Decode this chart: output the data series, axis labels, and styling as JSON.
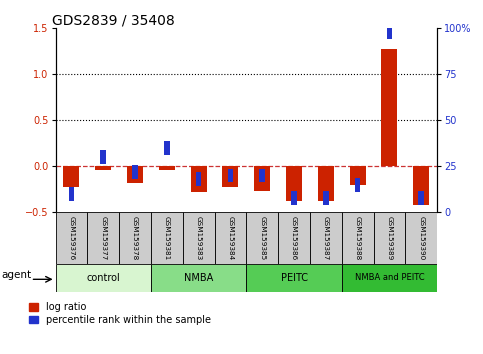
{
  "title": "GDS2839 / 35408",
  "samples": [
    "GSM159376",
    "GSM159377",
    "GSM159378",
    "GSM159381",
    "GSM159383",
    "GSM159384",
    "GSM159385",
    "GSM159386",
    "GSM159387",
    "GSM159388",
    "GSM159389",
    "GSM159390"
  ],
  "log_ratio": [
    -0.22,
    -0.04,
    -0.18,
    -0.04,
    -0.28,
    -0.22,
    -0.27,
    -0.38,
    -0.38,
    -0.2,
    1.27,
    -0.42
  ],
  "percentile_rank": [
    10,
    30,
    22,
    35,
    18,
    20,
    20,
    8,
    8,
    15,
    98,
    8
  ],
  "groups": [
    {
      "label": "control",
      "start": 0,
      "end": 3
    },
    {
      "label": "NMBA",
      "start": 3,
      "end": 6
    },
    {
      "label": "PEITC",
      "start": 6,
      "end": 9
    },
    {
      "label": "NMBA and PEITC",
      "start": 9,
      "end": 12
    }
  ],
  "group_colors": [
    "#d8f5d0",
    "#88dd88",
    "#55cc55",
    "#33bb33"
  ],
  "ylim_left": [
    -0.5,
    1.5
  ],
  "ylim_right": [
    0,
    100
  ],
  "yticks_left": [
    -0.5,
    0.0,
    0.5,
    1.0,
    1.5
  ],
  "yticks_right": [
    0,
    25,
    50,
    75,
    100
  ],
  "bar_color_red": "#cc2200",
  "bar_color_blue": "#2233cc",
  "dashed_line_color": "#cc3333",
  "agent_label": "agent",
  "legend_log_ratio": "log ratio",
  "legend_percentile": "percentile rank within the sample",
  "title_fontsize": 10,
  "tick_fontsize": 7,
  "bar_width": 0.5,
  "blue_marker_size": 0.15
}
